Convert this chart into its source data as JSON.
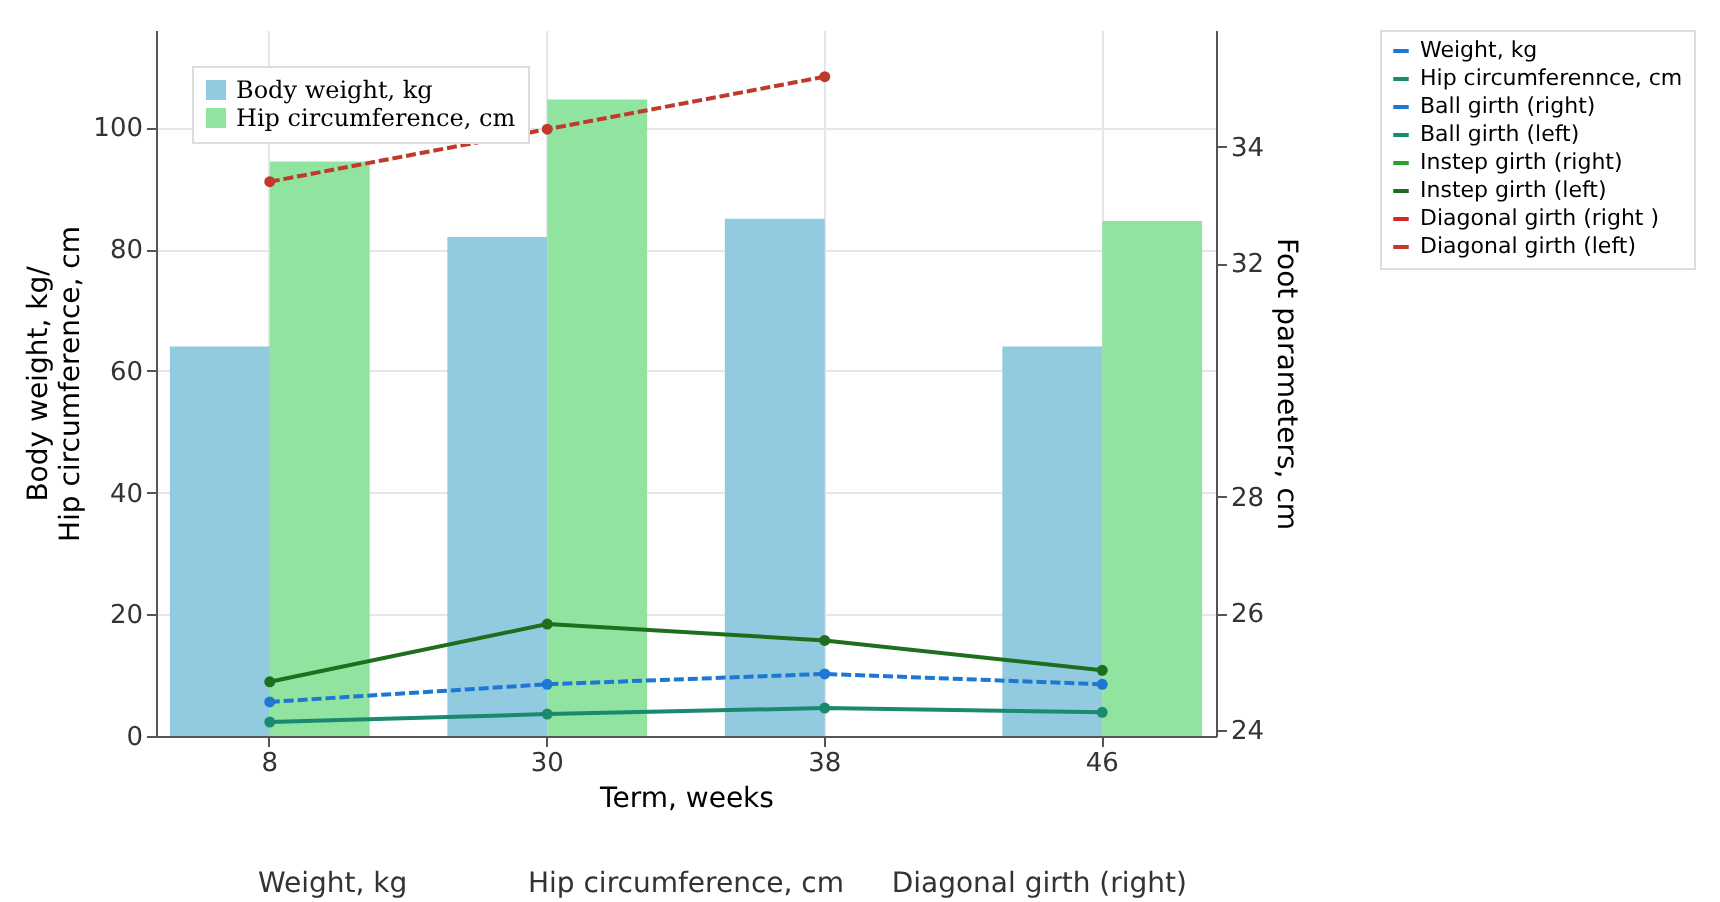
{
  "chart_data": {
    "type": "bar",
    "xlabel": "Term, weeks",
    "ylabel": "Body weight, kg/ Hip circumference, cm",
    "y2label": "Foot parameters, cm",
    "categories": [
      "8",
      "30",
      "38",
      "46"
    ],
    "ylim": [
      0,
      116
    ],
    "yticks": [
      0,
      20,
      40,
      60,
      80,
      100
    ],
    "y2lim": [
      23.9,
      36
    ],
    "y2ticks": [
      24,
      26,
      28,
      32,
      34
    ],
    "grid": true,
    "legend": "right",
    "marker": "circle",
    "series": [
      {
        "name": "Body weight, kg",
        "color": "#92cbe0",
        "values": [
          64,
          82,
          85,
          64
        ]
      },
      {
        "name": "Hip circumference, cm",
        "color": "#90e4a0",
        "values": [
          94.4,
          104.6,
          null,
          84.6
        ]
      },
      {
        "name": "Weight, kg",
        "type": "line",
        "color": "#1f77d4",
        "values": [
          null,
          null,
          null,
          null
        ]
      },
      {
        "name": "Hip circumferennce, cm",
        "type": "line",
        "color": "#1a8a6e",
        "values": [
          null,
          null,
          null,
          null
        ]
      },
      {
        "name": "Ball girth (right)",
        "type": "line",
        "color": "#1f77d4",
        "line_style": "dashed",
        "values": [
          5.6,
          8.5,
          10.2,
          8.5
        ]
      },
      {
        "name": "Ball girth (left)",
        "type": "line",
        "color": "#1a8a6e",
        "values": [
          2.3,
          3.6,
          4.6,
          3.9
        ]
      },
      {
        "name": "Instep girth (right)",
        "type": "line",
        "color": "#2ca02c",
        "values": [
          null,
          null,
          null,
          null
        ]
      },
      {
        "name": "Instep girth (left)",
        "type": "line",
        "color": "#1e6e1e",
        "values": [
          8.9,
          18.4,
          15.7,
          10.8
        ]
      },
      {
        "name": "Diagonal girth (right )",
        "type": "line",
        "color": "#d62728",
        "axis": "y2",
        "values": [
          null,
          null,
          null,
          null
        ]
      },
      {
        "name": "Diagonal girth (left)",
        "type": "line",
        "color": "#c0392b",
        "line_style": "dashed",
        "axis": "y2",
        "values": [
          33.4,
          34.3,
          35.2,
          null
        ]
      }
    ],
    "annotations": [
      "Weight, kg",
      "Hip circumference, cm",
      "Diagonal girth (right)"
    ]
  }
}
